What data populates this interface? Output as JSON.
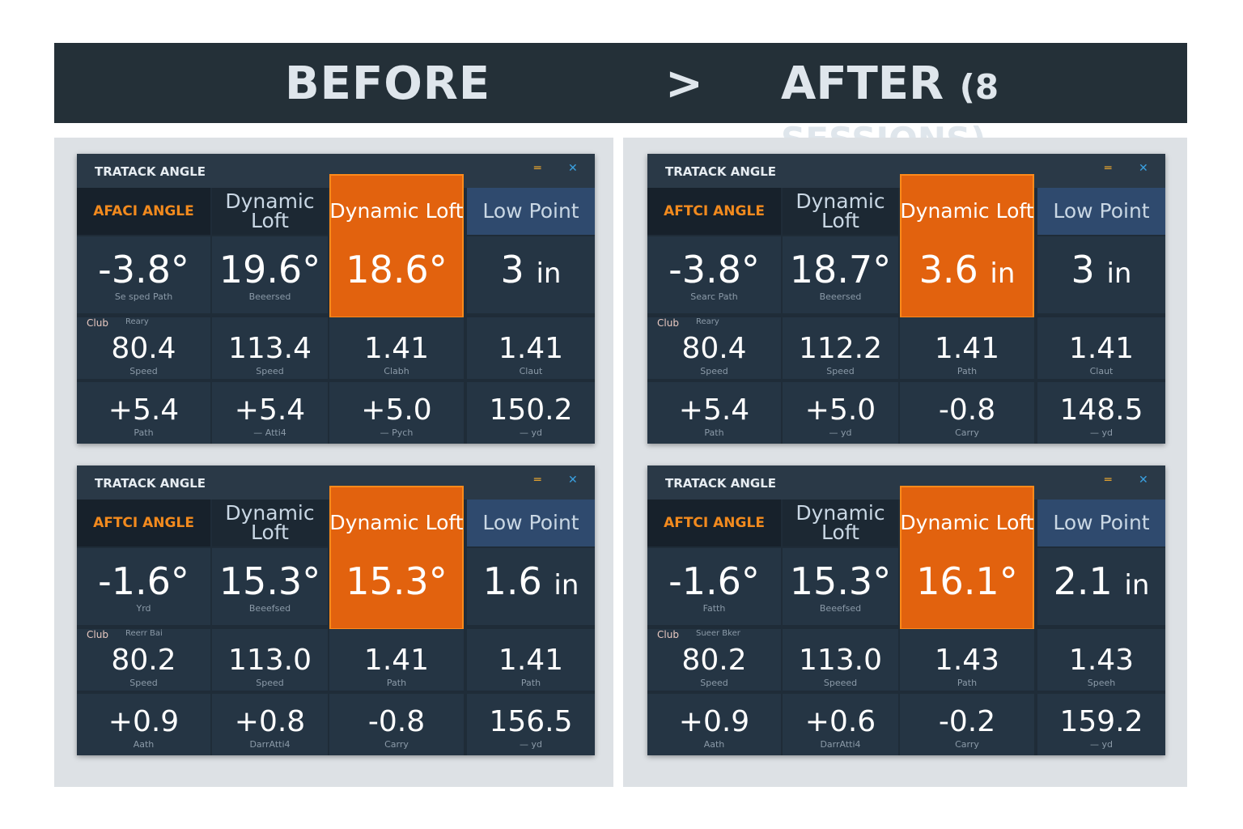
{
  "header": {
    "before": "BEFORE",
    "arrow": ">",
    "after": "AFTER",
    "after_sub": "(8 SESSIONS)"
  },
  "colors": {
    "accent": "#e2620e",
    "panel": "#1f2c38",
    "header_bar": "#243038"
  },
  "panels": [
    {
      "title": "TRATACK ANGLE",
      "headers": [
        "AFACI ANGLE",
        "Dynamic Loft",
        "Dynamic Loft",
        "Low Point"
      ],
      "big": [
        {
          "v": "-3.8°",
          "u": "",
          "s": "Se sped Path"
        },
        {
          "v": "19.6°",
          "u": "",
          "s": "Beeersed"
        },
        {
          "v": "18.6°",
          "u": "",
          "s": ""
        },
        {
          "v": "3",
          "u": "in",
          "s": ""
        }
      ],
      "club": "Club",
      "club_sub": "Reary",
      "row2": [
        {
          "v": "80.4",
          "s": "Speed"
        },
        {
          "v": "113.4",
          "s": "Speed"
        },
        {
          "v": "1.41",
          "s": "Clabh"
        },
        {
          "v": "1.41",
          "s": "Claut"
        }
      ],
      "row3": [
        {
          "v": "+5.4",
          "s": "Path"
        },
        {
          "v": "+5.4",
          "s": "— Atti4"
        },
        {
          "v": "+5.0",
          "s": "— Pych"
        },
        {
          "v": "150.2",
          "s": "— yd"
        }
      ]
    },
    {
      "title": "TRATACK ANGLE",
      "headers": [
        "AFTCI ANGLE",
        "Dynamic Loft",
        "Dynamic Loft",
        "Low Point"
      ],
      "big": [
        {
          "v": "-3.8°",
          "u": "",
          "s": "Searc Path"
        },
        {
          "v": "18.7°",
          "u": "",
          "s": "Beeersed"
        },
        {
          "v": "3.6",
          "u": "in",
          "s": ""
        },
        {
          "v": "3",
          "u": "in",
          "s": ""
        }
      ],
      "club": "Club",
      "club_sub": "Reary",
      "row2": [
        {
          "v": "80.4",
          "s": "Speed"
        },
        {
          "v": "112.2",
          "s": "Speed"
        },
        {
          "v": "1.41",
          "s": "Path"
        },
        {
          "v": "1.41",
          "s": "Claut"
        }
      ],
      "row3": [
        {
          "v": "+5.4",
          "s": "Path"
        },
        {
          "v": "+5.0",
          "s": "— yd"
        },
        {
          "v": "-0.8",
          "s": "Carry"
        },
        {
          "v": "148.5",
          "s": "— yd"
        }
      ]
    },
    {
      "title": "TRATACK ANGLE",
      "headers": [
        "AFTCI ANGLE",
        "Dynamic Loft",
        "Dynamic Loft",
        "Low Point"
      ],
      "big": [
        {
          "v": "-1.6°",
          "u": "",
          "s": "Yrd"
        },
        {
          "v": "15.3°",
          "u": "",
          "s": "Beeefsed"
        },
        {
          "v": "15.3°",
          "u": "",
          "s": ""
        },
        {
          "v": "1.6",
          "u": "in",
          "s": ""
        }
      ],
      "club": "Club",
      "club_sub": "Reerr Bai",
      "row2": [
        {
          "v": "80.2",
          "s": "Speed"
        },
        {
          "v": "113.0",
          "s": "Speed"
        },
        {
          "v": "1.41",
          "s": "Path"
        },
        {
          "v": "1.41",
          "s": "Path"
        }
      ],
      "row3": [
        {
          "v": "+0.9",
          "s": "Aath"
        },
        {
          "v": "+0.8",
          "s": "DarrAtti4"
        },
        {
          "v": "-0.8",
          "s": "Carry"
        },
        {
          "v": "156.5",
          "s": "— yd"
        }
      ]
    },
    {
      "title": "TRATACK ANGLE",
      "headers": [
        "AFTCI ANGLE",
        "Dynamic Loft",
        "Dynamic Loft",
        "Low Point"
      ],
      "big": [
        {
          "v": "-1.6°",
          "u": "",
          "s": "Fatth"
        },
        {
          "v": "15.3°",
          "u": "",
          "s": "Beeefsed"
        },
        {
          "v": "16.1°",
          "u": "",
          "s": ""
        },
        {
          "v": "2.1",
          "u": "in",
          "s": ""
        }
      ],
      "club": "Club",
      "club_sub": "Sueer Bker",
      "row2": [
        {
          "v": "80.2",
          "s": "Speed"
        },
        {
          "v": "113.0",
          "s": "Speeed"
        },
        {
          "v": "1.43",
          "s": "Path"
        },
        {
          "v": "1.43",
          "s": "Speeh"
        }
      ],
      "row3": [
        {
          "v": "+0.9",
          "s": "Aath"
        },
        {
          "v": "+0.6",
          "s": "DarrAtti4"
        },
        {
          "v": "-0.2",
          "s": "Carry"
        },
        {
          "v": "159.2",
          "s": "— yd"
        }
      ]
    }
  ]
}
